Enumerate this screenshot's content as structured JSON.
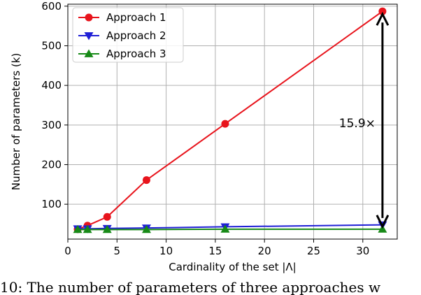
{
  "chart_data": {
    "type": "line",
    "title": "",
    "xlabel": "Cardinality of the set |Λ|",
    "ylabel": "Number of parameters (k)",
    "xlim": [
      0,
      33.5
    ],
    "ylim": [
      12,
      605
    ],
    "xticks": [
      0,
      5,
      10,
      15,
      20,
      25,
      30
    ],
    "yticks": [
      100,
      200,
      300,
      400,
      500,
      600
    ],
    "grid": true,
    "legend_position": "top-left",
    "series": [
      {
        "name": "Approach 1",
        "color": "#e8141c",
        "marker": "circle",
        "x": [
          1,
          2,
          4,
          8,
          16,
          32
        ],
        "y": [
          37,
          46,
          68,
          161,
          303,
          587
        ]
      },
      {
        "name": "Approach 2",
        "color": "#1f1fd6",
        "marker": "triangle-down",
        "x": [
          1,
          2,
          4,
          8,
          16,
          32
        ],
        "y": [
          38,
          38,
          39,
          40,
          43,
          48
        ]
      },
      {
        "name": "Approach 3",
        "color": "#178a17",
        "marker": "triangle-up",
        "x": [
          1,
          2,
          4,
          8,
          16,
          32
        ],
        "y": [
          36,
          36,
          36,
          36,
          37,
          37
        ]
      }
    ],
    "annotation": {
      "text": "15.9×",
      "x": 32,
      "y_from": 37,
      "y_to": 587
    }
  },
  "caption": "10: The number of parameters of three approaches w"
}
